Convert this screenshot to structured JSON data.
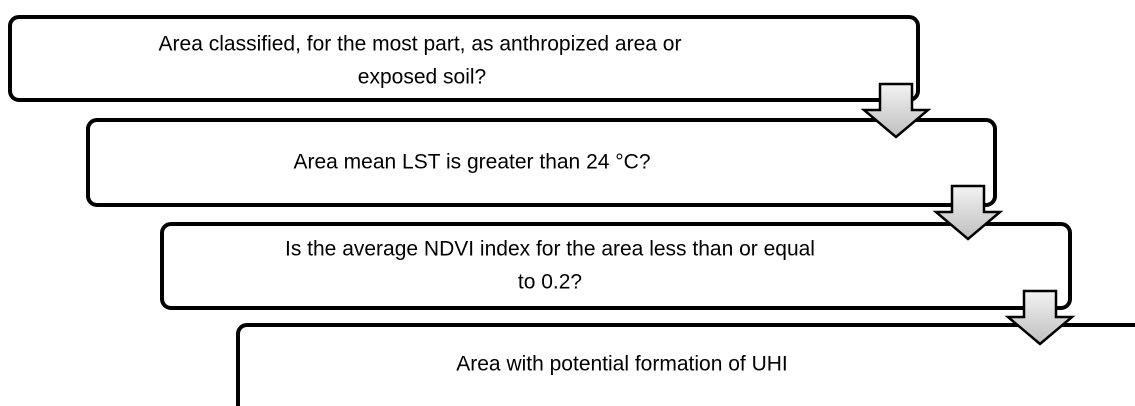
{
  "nodes": [
    {
      "lines": [
        "Area classified, for the most part, as anthropized area or",
        "exposed soil?"
      ]
    },
    {
      "lines": [
        "Area mean LST is greater than 24 °C?"
      ]
    },
    {
      "lines": [
        "Is the average NDVI index for the area less than or equal",
        "to 0.2?"
      ]
    },
    {
      "lines": [
        "Area with potential formation of UHI"
      ]
    }
  ]
}
